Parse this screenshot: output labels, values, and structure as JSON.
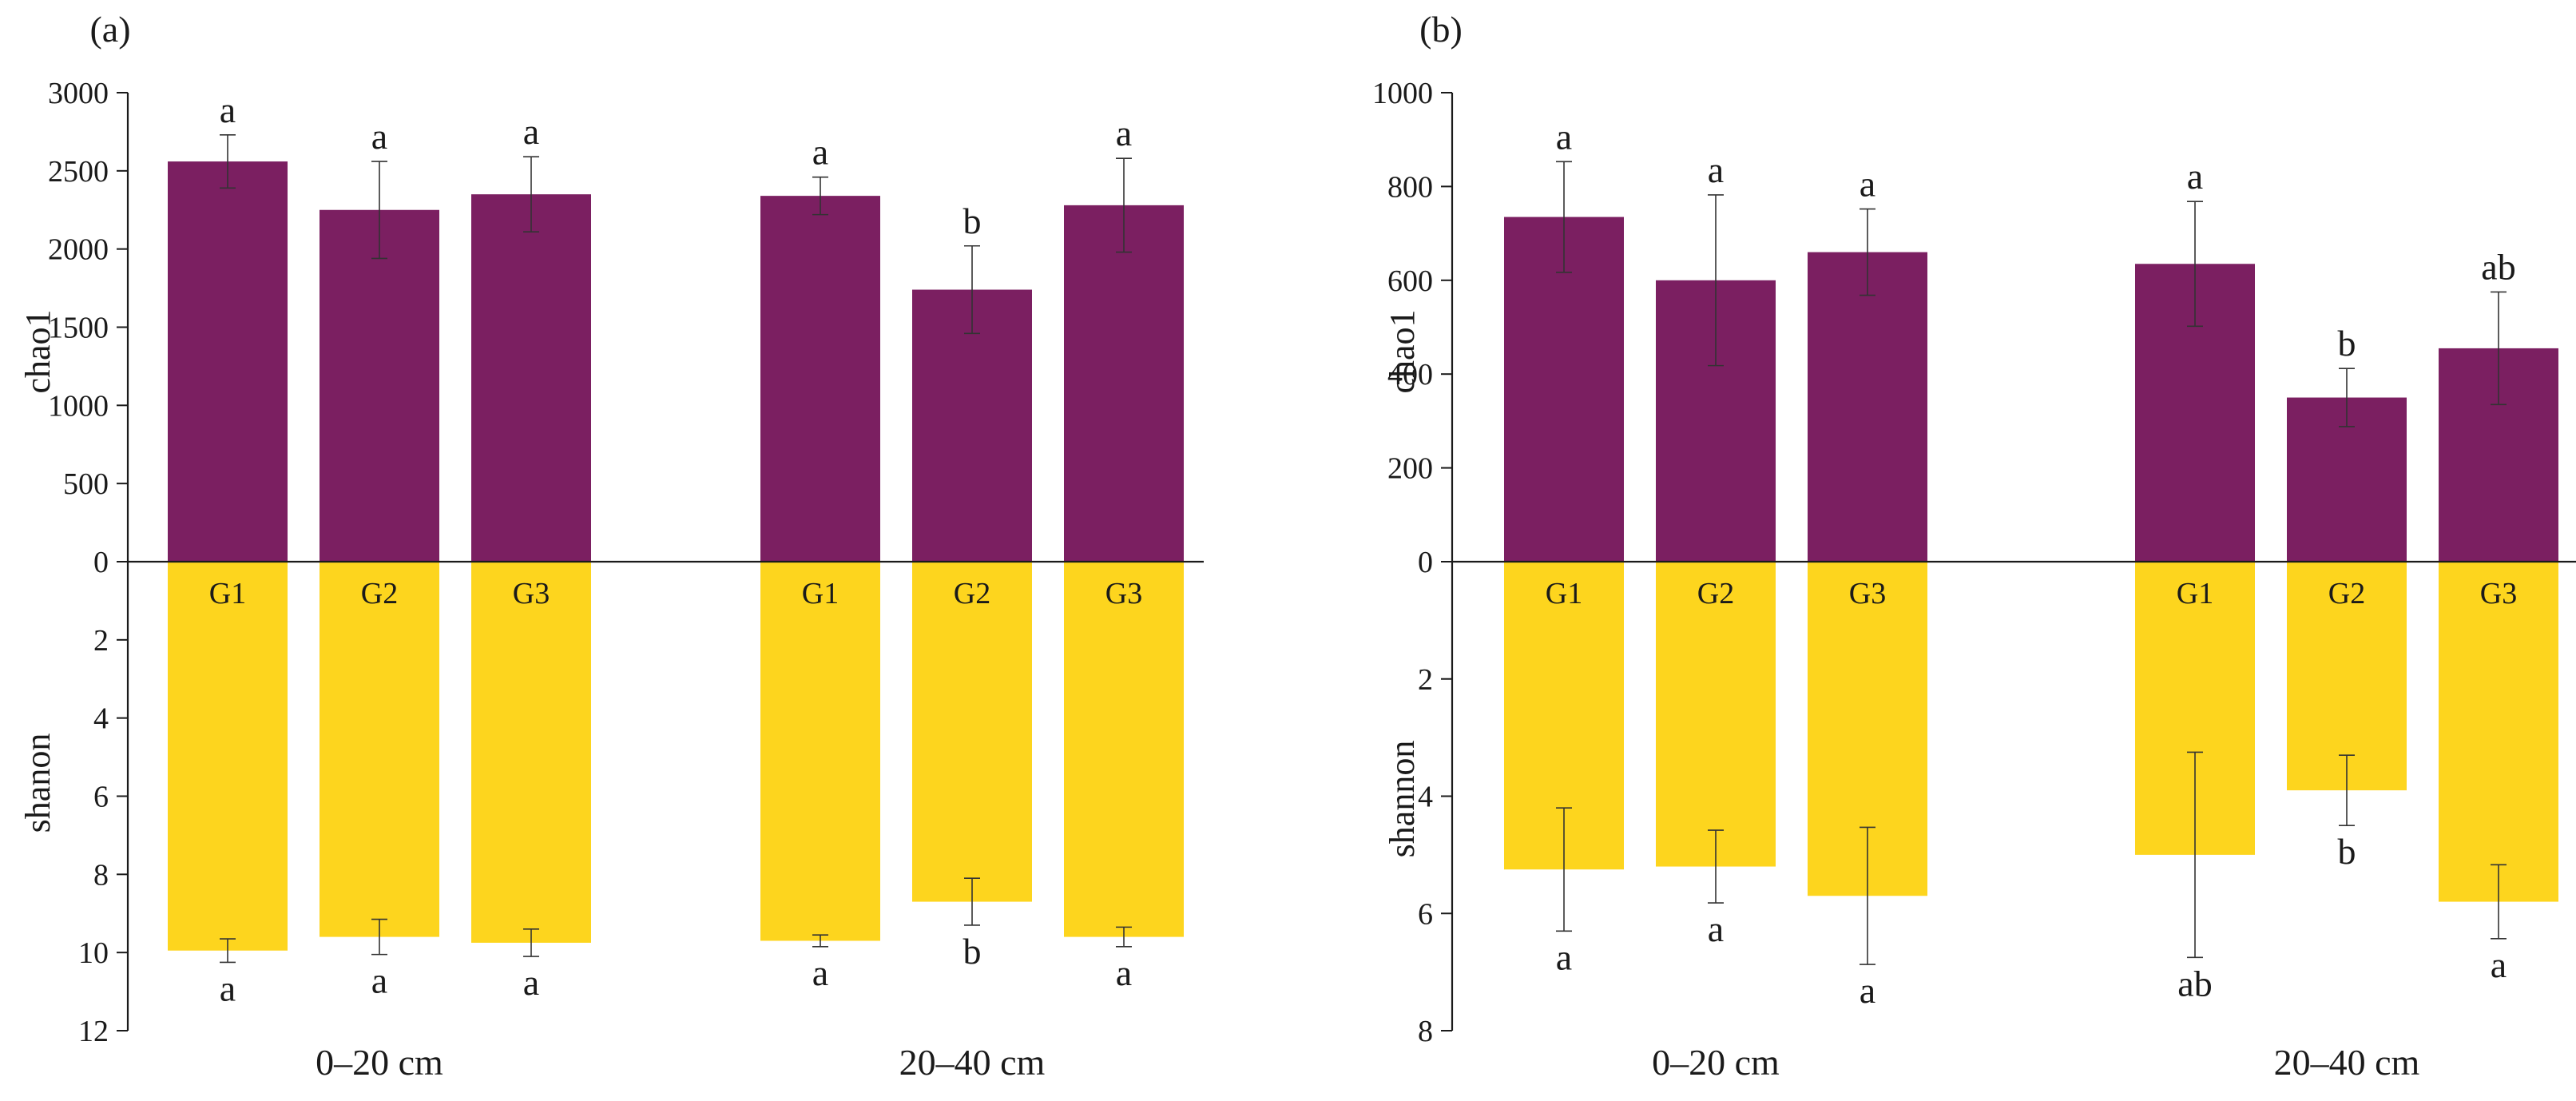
{
  "colors": {
    "top_bar": "#7b1f61",
    "bottom_bar": "#fdd51e",
    "axis": "#1a1a1a",
    "error_bar": "#333333"
  },
  "chart_data": [
    {
      "type": "bar",
      "panel_label": "(a)",
      "groups": [
        "0–20 cm",
        "20–40 cm"
      ],
      "categories": [
        "G1",
        "G2",
        "G3"
      ],
      "top": {
        "ylabel": "chao1",
        "ylim": [
          0,
          3000
        ],
        "ticks": [
          "3000",
          "2500",
          "2000",
          "1500",
          "1000",
          "500",
          "0"
        ],
        "series": [
          {
            "group": "0–20 cm",
            "values": [
              2560,
              2250,
              2350
            ],
            "errors": [
              170,
              310,
              240
            ],
            "letters": [
              "a",
              "a",
              "a"
            ]
          },
          {
            "group": "20–40 cm",
            "values": [
              2340,
              1740,
              2280
            ],
            "errors": [
              120,
              280,
              300
            ],
            "letters": [
              "a",
              "b",
              "a"
            ]
          }
        ]
      },
      "bottom": {
        "ylabel": "shanon",
        "ylim": [
          0,
          12
        ],
        "ticks": [
          "2",
          "4",
          "6",
          "8",
          "10",
          "12"
        ],
        "series": [
          {
            "group": "0–20 cm",
            "values": [
              9.95,
              9.6,
              9.75
            ],
            "errors": [
              0.3,
              0.45,
              0.35
            ],
            "letters": [
              "a",
              "a",
              "a"
            ]
          },
          {
            "group": "20–40 cm",
            "values": [
              9.7,
              8.7,
              9.6
            ],
            "errors": [
              0.15,
              0.6,
              0.25
            ],
            "letters": [
              "a",
              "b",
              "a"
            ]
          }
        ]
      }
    },
    {
      "type": "bar",
      "panel_label": "(b)",
      "groups": [
        "0–20 cm",
        "20–40 cm"
      ],
      "categories": [
        "G1",
        "G2",
        "G3"
      ],
      "top": {
        "ylabel": "chao1",
        "ylim": [
          0,
          1000
        ],
        "ticks": [
          "1000",
          "800",
          "600",
          "400",
          "200",
          "0"
        ],
        "series": [
          {
            "group": "0–20 cm",
            "values": [
              735,
              600,
              660
            ],
            "errors": [
              118,
              182,
              92
            ],
            "letters": [
              "a",
              "a",
              "a"
            ]
          },
          {
            "group": "20–40 cm",
            "values": [
              635,
              350,
              455
            ],
            "errors": [
              133,
              62,
              120
            ],
            "letters": [
              "a",
              "b",
              "ab"
            ]
          }
        ]
      },
      "bottom": {
        "ylabel": "shannon",
        "ylim": [
          0,
          8
        ],
        "ticks": [
          "2",
          "4",
          "6",
          "8"
        ],
        "series": [
          {
            "group": "0–20 cm",
            "values": [
              5.25,
              5.2,
              5.7
            ],
            "errors": [
              1.05,
              0.62,
              1.17
            ],
            "letters": [
              "a",
              "a",
              "a"
            ]
          },
          {
            "group": "20–40 cm",
            "values": [
              5.0,
              3.9,
              5.8
            ],
            "errors": [
              1.75,
              0.6,
              0.63
            ],
            "letters": [
              "ab",
              "b",
              "a"
            ]
          }
        ]
      }
    }
  ]
}
